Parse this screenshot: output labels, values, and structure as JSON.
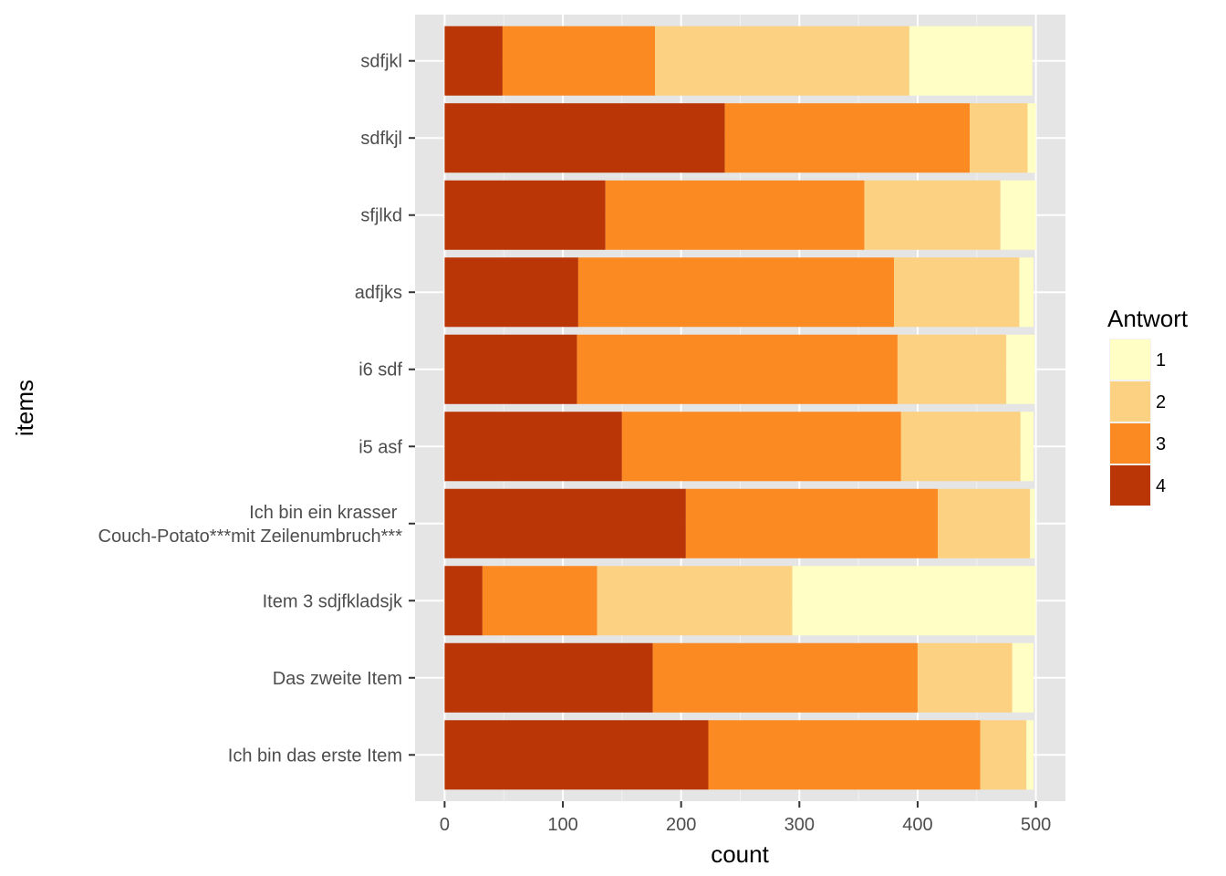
{
  "chart_data": {
    "type": "bar",
    "orientation": "horizontal",
    "stacked": true,
    "xlabel": "count",
    "ylabel": "items",
    "xlim": [
      -25,
      525
    ],
    "xticks": [
      0,
      100,
      200,
      300,
      400,
      500
    ],
    "xtick_labels": [
      "0",
      "100",
      "200",
      "300",
      "400",
      "500"
    ],
    "grid": true,
    "legend_position": "right",
    "categories": [
      "sdfjkl",
      "sdfkjl",
      "sfjlkd",
      "adfjks",
      "i6 sdf",
      "i5 asf",
      "Ich bin ein krasser \nCouch-Potato***mit Zeilenumbruch***",
      "Item 3 sdjfkladsjk",
      "Das zweite Item",
      "Ich bin das erste Item"
    ],
    "series": [
      {
        "name": "4",
        "color": "#bb3606",
        "values": [
          49,
          237,
          136,
          113,
          112,
          150,
          204,
          32,
          176,
          223
        ]
      },
      {
        "name": "3",
        "color": "#fc8a23",
        "values": [
          129,
          207,
          219,
          267,
          271,
          236,
          213,
          97,
          224,
          230
        ]
      },
      {
        "name": "2",
        "color": "#fcd181",
        "values": [
          215,
          49,
          115,
          106,
          92,
          101,
          78,
          165,
          80,
          39
        ]
      },
      {
        "name": "1",
        "color": "#fefec5",
        "values": [
          104,
          7,
          30,
          12,
          24,
          11,
          4,
          206,
          18,
          6
        ]
      }
    ],
    "legend": {
      "title": "Antwort",
      "entries": [
        {
          "label": "1",
          "color": "#fefec5"
        },
        {
          "label": "2",
          "color": "#fcd181"
        },
        {
          "label": "3",
          "color": "#fc8a23"
        },
        {
          "label": "4",
          "color": "#bb3606"
        }
      ]
    },
    "colors": {
      "panel": "#e5e5e5",
      "grid": "#ffffff",
      "tick_text": "#4d4d4d",
      "tick_mark": "#333333"
    }
  }
}
